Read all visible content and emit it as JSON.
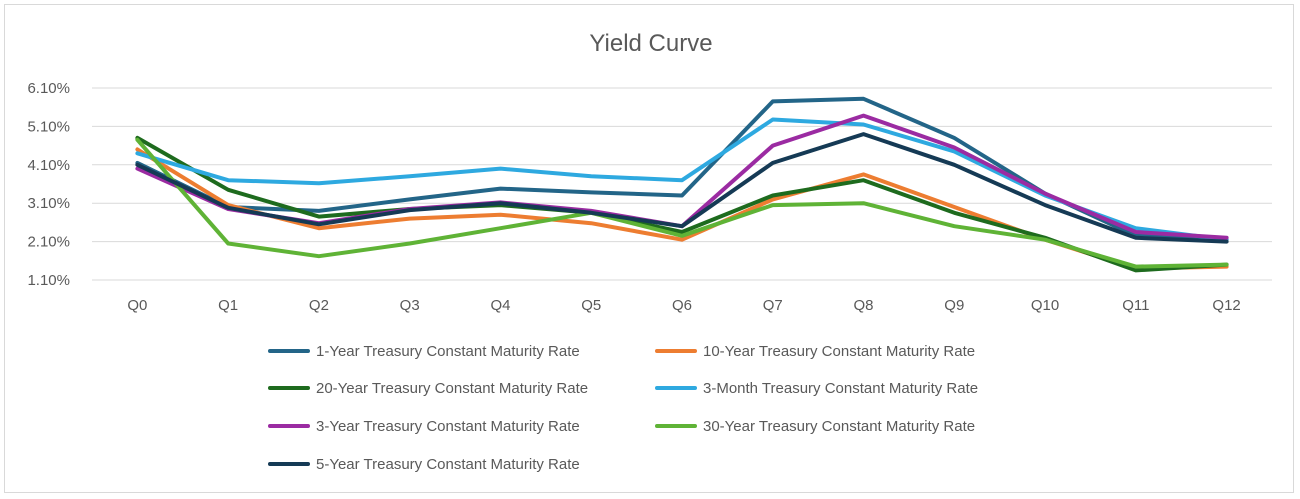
{
  "chart_data": {
    "type": "line",
    "title": "Yield Curve",
    "xlabel": "",
    "ylabel": "",
    "categories": [
      "Q0",
      "Q1",
      "Q2",
      "Q3",
      "Q4",
      "Q5",
      "Q6",
      "Q7",
      "Q8",
      "Q9",
      "Q10",
      "Q11",
      "Q12"
    ],
    "y_ticks": [
      "1.10%",
      "2.10%",
      "3.10%",
      "4.10%",
      "5.10%",
      "6.10%"
    ],
    "ylim": [
      1.1,
      6.1
    ],
    "grid": true,
    "legend_position": "bottom",
    "series": [
      {
        "name": "1-Year Treasury Constant Maturity Rate",
        "color": "#236588",
        "values": [
          4.15,
          3.0,
          2.9,
          3.2,
          3.48,
          3.38,
          3.3,
          5.75,
          5.82,
          4.8,
          3.35,
          2.25,
          2.15
        ]
      },
      {
        "name": "10-Year Treasury Constant Maturity Rate",
        "color": "#ed7d31",
        "values": [
          4.5,
          3.05,
          2.45,
          2.7,
          2.8,
          2.58,
          2.15,
          3.2,
          3.85,
          3.0,
          2.15,
          1.4,
          1.45
        ]
      },
      {
        "name": "20-Year Treasury Constant Maturity Rate",
        "color": "#1e6b1e",
        "values": [
          4.8,
          3.45,
          2.75,
          2.95,
          3.05,
          2.85,
          2.35,
          3.3,
          3.7,
          2.85,
          2.2,
          1.35,
          1.5
        ]
      },
      {
        "name": "3-Month Treasury Constant Maturity Rate",
        "color": "#2ea9e0",
        "values": [
          4.4,
          3.7,
          3.62,
          3.8,
          4.0,
          3.8,
          3.7,
          5.28,
          5.15,
          4.45,
          3.3,
          2.45,
          2.15
        ]
      },
      {
        "name": "3-Year Treasury Constant Maturity Rate",
        "color": "#9b2ba2",
        "values": [
          4.0,
          2.95,
          2.58,
          2.95,
          3.12,
          2.9,
          2.5,
          4.6,
          5.38,
          4.55,
          3.35,
          2.35,
          2.2
        ]
      },
      {
        "name": "30-Year Treasury Constant Maturity Rate",
        "color": "#5fb336",
        "values": [
          4.75,
          2.05,
          1.72,
          2.05,
          2.45,
          2.85,
          2.25,
          3.05,
          3.1,
          2.5,
          2.15,
          1.45,
          1.5
        ]
      },
      {
        "name": "5-Year Treasury Constant Maturity Rate",
        "color": "#153a55",
        "values": [
          4.1,
          2.98,
          2.55,
          2.92,
          3.1,
          2.85,
          2.5,
          4.15,
          4.9,
          4.1,
          3.05,
          2.2,
          2.1
        ]
      }
    ]
  }
}
